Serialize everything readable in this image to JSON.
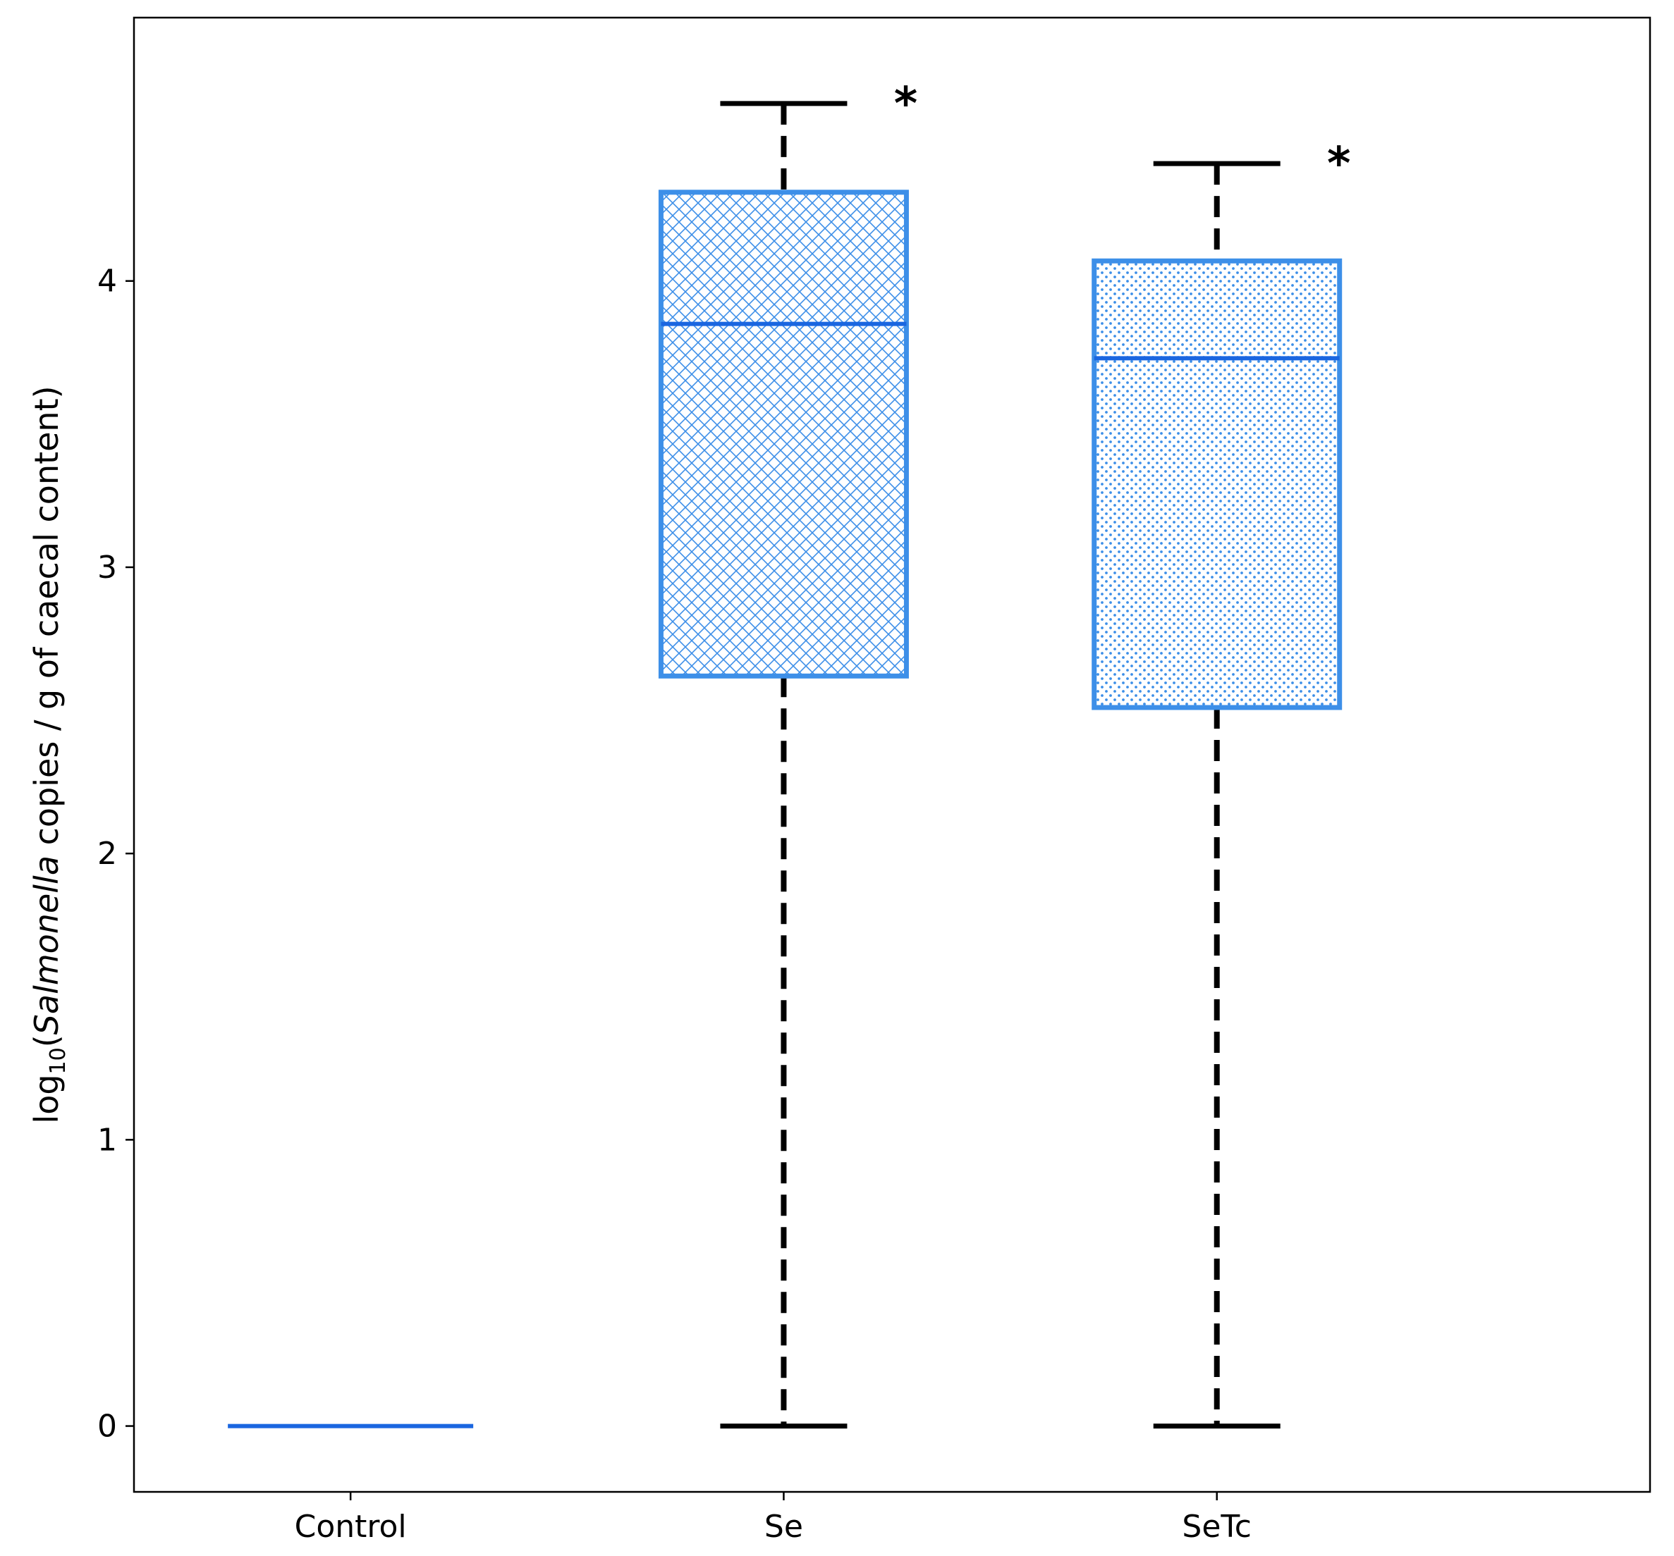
{
  "chart_data": {
    "type": "box",
    "ylabel": {
      "prefix": "log",
      "subscript": "10",
      "open": "(",
      "italic": "Salmonella",
      "rest": " copies / g of caecal content)"
    },
    "ylim": [
      -0.23,
      4.92
    ],
    "yticks": [
      0,
      1,
      2,
      3,
      4
    ],
    "categories": [
      "Control",
      "Se",
      "SeTc"
    ],
    "boxes": [
      {
        "category": "Control",
        "whisker_low": 0,
        "q1": 0,
        "median": 0,
        "q3": 0,
        "whisker_high": 0,
        "pattern": "none",
        "significance": ""
      },
      {
        "category": "Se",
        "whisker_low": 0,
        "q1": 2.62,
        "median": 3.85,
        "q3": 4.31,
        "whisker_high": 4.62,
        "pattern": "crosshatch",
        "significance": "*"
      },
      {
        "category": "SeTc",
        "whisker_low": 0,
        "q1": 2.51,
        "median": 3.73,
        "q3": 4.07,
        "whisker_high": 4.41,
        "pattern": "dots",
        "significance": "*"
      }
    ],
    "colors": {
      "box_edge": "#3d8fe8",
      "hatch": "#3d8fe8",
      "median": "#1a66e0",
      "whisker": "#000000",
      "axes": "#000000"
    },
    "grid": false,
    "legend": "none"
  }
}
